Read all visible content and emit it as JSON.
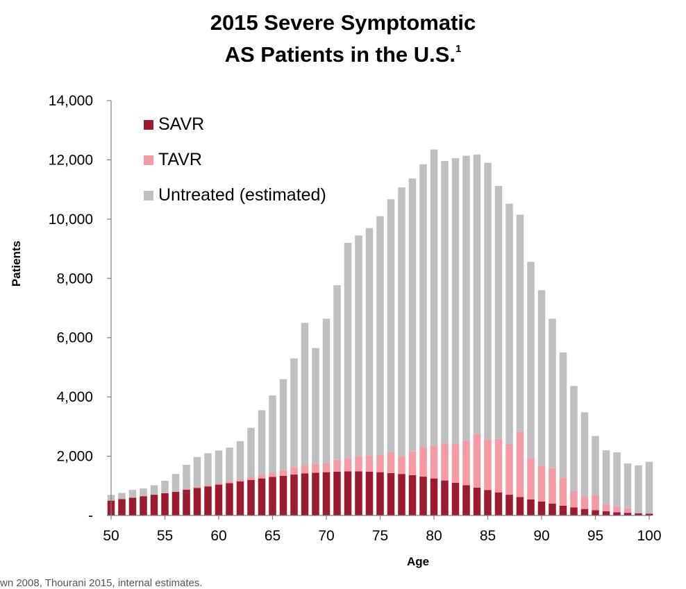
{
  "title_line1": "2015 Severe Symptomatic",
  "title_line2": "AS Patients in the U.S.",
  "title_footnote": "1",
  "source_note": "wn 2008, Thourani 2015, internal estimates.",
  "chart_data": {
    "type": "bar",
    "stacked": true,
    "xlabel": "Age",
    "ylabel": "Patients",
    "ylim": [
      0,
      14000
    ],
    "yticks": [
      0,
      2000,
      4000,
      6000,
      8000,
      10000,
      12000,
      14000
    ],
    "ytick_labels": [
      "-",
      "2,000",
      "4,000",
      "6,000",
      "8,000",
      "10,000",
      "12,000",
      "14,000"
    ],
    "xticks": [
      50,
      55,
      60,
      65,
      70,
      75,
      80,
      85,
      90,
      95,
      100
    ],
    "x": [
      50,
      51,
      52,
      53,
      54,
      55,
      56,
      57,
      58,
      59,
      60,
      61,
      62,
      63,
      64,
      65,
      66,
      67,
      68,
      69,
      70,
      71,
      72,
      73,
      74,
      75,
      76,
      77,
      78,
      79,
      80,
      81,
      82,
      83,
      84,
      85,
      86,
      87,
      88,
      89,
      90,
      91,
      92,
      93,
      94,
      95,
      96,
      97,
      98,
      99,
      100
    ],
    "legend_position": "top-left",
    "grid": false,
    "series": [
      {
        "name": "SAVR",
        "color": "#9b1b30",
        "values": [
          500,
          550,
          600,
          650,
          700,
          750,
          800,
          870,
          930,
          980,
          1040,
          1090,
          1150,
          1200,
          1250,
          1300,
          1340,
          1380,
          1420,
          1440,
          1460,
          1480,
          1490,
          1490,
          1480,
          1460,
          1430,
          1400,
          1360,
          1310,
          1250,
          1180,
          1100,
          1020,
          940,
          860,
          780,
          700,
          620,
          540,
          470,
          400,
          330,
          270,
          220,
          180,
          140,
          110,
          90,
          70,
          60
        ]
      },
      {
        "name": "TAVR",
        "color": "#f49aa6",
        "values": [
          0,
          0,
          0,
          0,
          0,
          0,
          10,
          20,
          30,
          40,
          50,
          60,
          70,
          100,
          120,
          150,
          200,
          250,
          280,
          300,
          300,
          400,
          450,
          500,
          550,
          580,
          700,
          600,
          800,
          1000,
          1100,
          1250,
          1300,
          1500,
          1800,
          1700,
          1800,
          1700,
          2200,
          1400,
          1200,
          1200,
          950,
          550,
          400,
          500,
          250,
          200,
          150,
          0,
          0
        ]
      },
      {
        "name": "Untreated (estimated)",
        "color": "#bfbfbf",
        "values": [
          190,
          210,
          260,
          260,
          320,
          420,
          590,
          820,
          1010,
          1080,
          1100,
          1140,
          1290,
          1660,
          2180,
          2600,
          3060,
          3670,
          4800,
          3910,
          4880,
          5890,
          7260,
          7460,
          7670,
          8060,
          8540,
          9070,
          9210,
          9540,
          10000,
          9530,
          9660,
          9620,
          9440,
          9340,
          8540,
          8120,
          7330,
          6620,
          5930,
          5040,
          4220,
          3550,
          2860,
          2000,
          1810,
          1820,
          1520,
          1620,
          1750
        ]
      }
    ]
  }
}
